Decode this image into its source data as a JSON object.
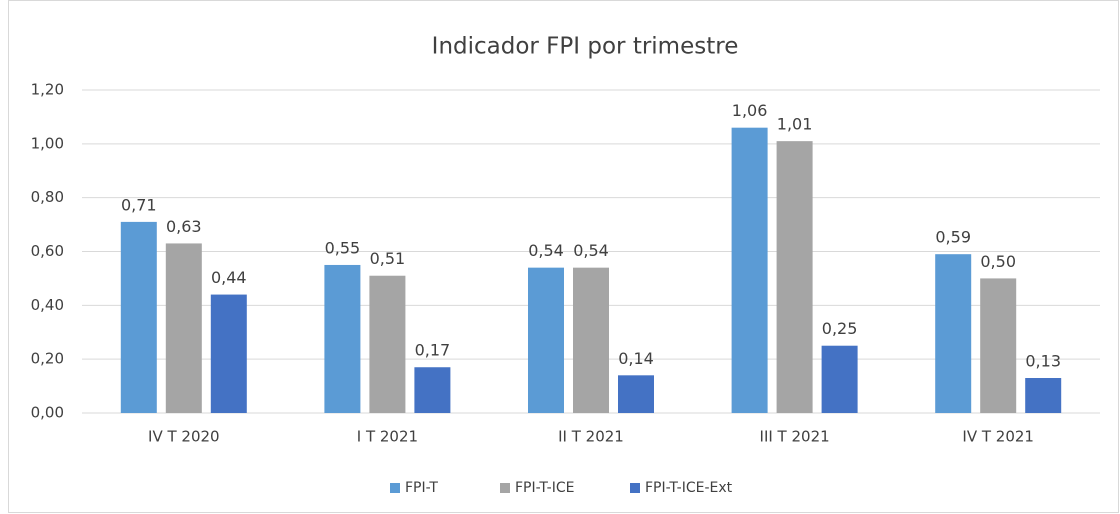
{
  "chart_data": {
    "type": "bar",
    "title": "Indicador FPI por trimestre",
    "categories": [
      "IV T 2020",
      "I T 2021",
      "II T 2021",
      "III T 2021",
      "IV T 2021"
    ],
    "series": [
      {
        "name": "FPI-T",
        "color": "#5b9bd5",
        "values": [
          0.71,
          0.55,
          0.54,
          1.06,
          0.59
        ],
        "value_labels": [
          "0,71",
          "0,55",
          "0,54",
          "1,06",
          "0,59"
        ]
      },
      {
        "name": "FPI-T-ICE",
        "color": "#a5a5a5",
        "values": [
          0.63,
          0.51,
          0.54,
          1.01,
          0.5
        ],
        "value_labels": [
          "0,63",
          "0,51",
          "0,54",
          "1,01",
          "0,50"
        ]
      },
      {
        "name": "FPI-T-ICE-Ext",
        "color": "#4472c4",
        "values": [
          0.44,
          0.17,
          0.14,
          0.25,
          0.13
        ],
        "value_labels": [
          "0,44",
          "0,17",
          "0,14",
          "0,25",
          "0,13"
        ]
      }
    ],
    "ylim": [
      0,
      1.2
    ],
    "yticks": [
      {
        "value": 0,
        "label": "0,00"
      },
      {
        "value": 0.2,
        "label": "0,20"
      },
      {
        "value": 0.4,
        "label": "0,40"
      },
      {
        "value": 0.6,
        "label": "0,60"
      },
      {
        "value": 0.8,
        "label": "0,80"
      },
      {
        "value": 1.0,
        "label": "1,00"
      },
      {
        "value": 1.2,
        "label": "1,20"
      }
    ],
    "grid": true,
    "legend": "bottom"
  }
}
